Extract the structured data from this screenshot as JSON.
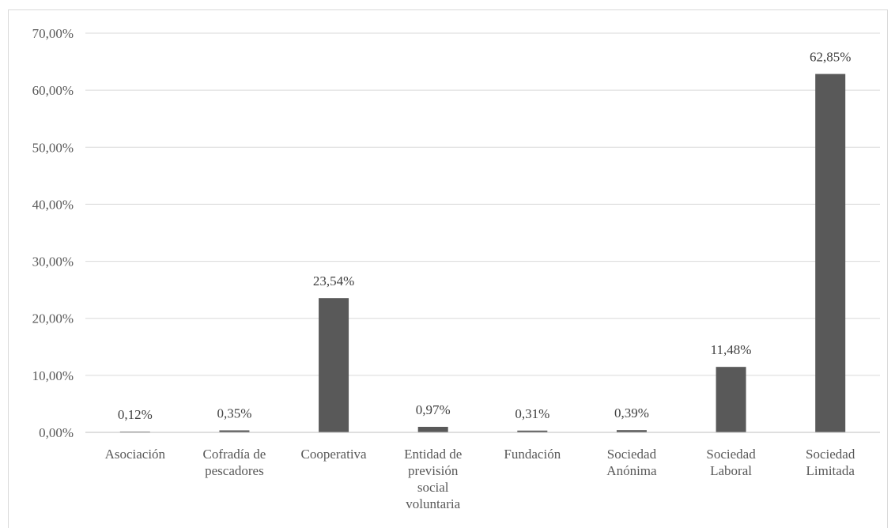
{
  "chart_data": {
    "type": "bar",
    "categories": [
      [
        "Asociación"
      ],
      [
        "Cofradía de",
        "pescadores"
      ],
      [
        "Cooperativa"
      ],
      [
        "Entidad de",
        "previsión",
        "social",
        "voluntaria"
      ],
      [
        "Fundación"
      ],
      [
        "Sociedad",
        "Anónima"
      ],
      [
        "Sociedad",
        "Laboral"
      ],
      [
        "Sociedad",
        "Limitada"
      ]
    ],
    "values": [
      0.12,
      0.35,
      23.54,
      0.97,
      0.31,
      0.39,
      11.48,
      62.85
    ],
    "data_labels": [
      "0,12%",
      "0,35%",
      "23,54%",
      "0,97%",
      "0,31%",
      "0,39%",
      "11,48%",
      "62,85%"
    ],
    "ylim": [
      0,
      70
    ],
    "yticks": [
      0,
      10,
      20,
      30,
      40,
      50,
      60,
      70
    ],
    "ytick_labels": [
      "0,00%",
      "10,00%",
      "20,00%",
      "30,00%",
      "40,00%",
      "50,00%",
      "60,00%",
      "70,00%"
    ],
    "grid": true,
    "legend": "none",
    "title": "",
    "xlabel": "",
    "ylabel": "",
    "bar_color": "#595959",
    "grid_color": "#d9d9d9"
  }
}
